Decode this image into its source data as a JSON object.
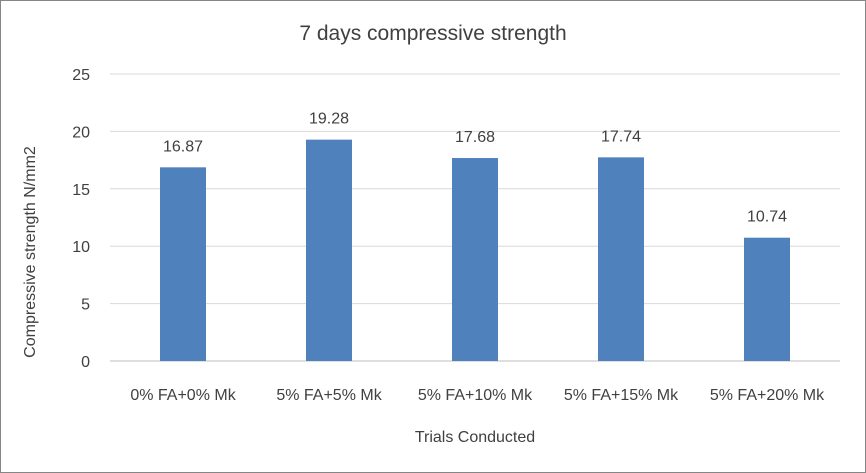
{
  "chart_data": {
    "type": "bar",
    "title": "7 days compressive strength",
    "xlabel": "Trials Conducted",
    "ylabel": "Compressive strength N/mm2",
    "categories": [
      "0% FA+0% Mk",
      "5% FA+5% Mk",
      "5% FA+10% Mk",
      "5% FA+15% Mk",
      "5% FA+20% Mk"
    ],
    "values": [
      16.87,
      19.28,
      17.68,
      17.74,
      10.74
    ],
    "data_labels": [
      "16.87",
      "19.28",
      "17.68",
      "17.74",
      "10.74"
    ],
    "ylim": [
      0,
      25
    ],
    "yticks": [
      0,
      5,
      10,
      15,
      20,
      25
    ],
    "grid": true,
    "legend": "none",
    "colors": {
      "bar": "#4f81bd",
      "grid": "#d9d9d9",
      "text": "#404040"
    }
  }
}
